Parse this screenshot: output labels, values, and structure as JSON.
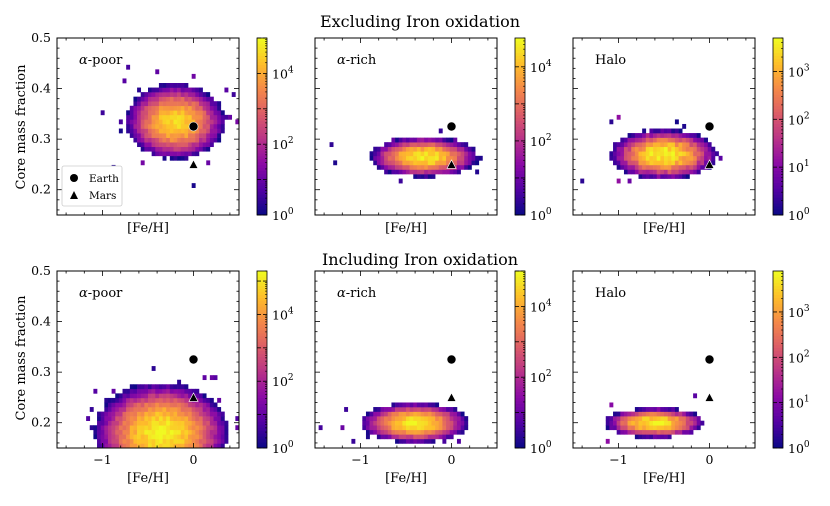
{
  "colors": {
    "cmap": [
      "#0d0887",
      "#5402a3",
      "#8b0aa5",
      "#b83289",
      "#db5c68",
      "#f48849",
      "#febd2a",
      "#f0f921"
    ],
    "marker": "#000000",
    "background": "#ffffff"
  },
  "chart_data": {
    "type": "heatmap",
    "shared": {
      "xlabel": "[Fe/H]",
      "ylabel": "Core mass fraction",
      "xlim": [
        -1.5,
        0.5
      ],
      "ylim": [
        0.15,
        0.5
      ],
      "xticks": [
        -1,
        0
      ],
      "xtick_labels": [
        "−1",
        "0"
      ],
      "yticks": [
        0.2,
        0.3,
        0.4,
        0.5
      ],
      "ytick_labels": [
        "0.2",
        "0.3",
        "0.4",
        "0.5"
      ],
      "colorscale": "plasma (log)",
      "cb_tick_base": "10",
      "legend_entries": [
        "Earth",
        "Mars"
      ],
      "legend_location": "lower-left",
      "points": [
        {
          "name": "Earth",
          "marker": "circle",
          "feh": 0.0,
          "cmf_excl": 0.325,
          "cmf_incl": 0.325
        },
        {
          "name": "Mars",
          "marker": "triangle",
          "feh": 0.0,
          "cmf_excl": 0.25,
          "cmf_incl": 0.25
        }
      ]
    },
    "rows": [
      {
        "title": "Excluding Iron oxidation"
      },
      {
        "title": "Including Iron oxidation"
      }
    ],
    "panels": [
      {
        "label_greek": "α",
        "label_rest": "-poor",
        "row": 0,
        "col": 0,
        "cb_max": 100000,
        "cb_ticks": [
          0,
          2,
          4
        ],
        "blob": {
          "center_feh": -0.2,
          "center_cmf": 0.335,
          "width_feh": 0.55,
          "height_cmf": 0.075,
          "max_log": 4.6
        },
        "earth_cmf": 0.325,
        "mars_cmf": 0.25
      },
      {
        "label_greek": "α",
        "label_rest": "-rich",
        "row": 0,
        "col": 1,
        "cb_max": 60000,
        "cb_ticks": [
          0,
          2,
          4
        ],
        "blob": {
          "center_feh": -0.3,
          "center_cmf": 0.265,
          "width_feh": 0.6,
          "height_cmf": 0.04,
          "max_log": 4.6
        },
        "earth_cmf": 0.325,
        "mars_cmf": 0.25
      },
      {
        "label_greek": "",
        "label_rest": "Halo",
        "row": 0,
        "col": 2,
        "cb_max": 5000,
        "cb_ticks": [
          0,
          1,
          2,
          3
        ],
        "blob": {
          "center_feh": -0.5,
          "center_cmf": 0.27,
          "width_feh": 0.6,
          "height_cmf": 0.05,
          "max_log": 3.6
        },
        "earth_cmf": 0.325,
        "mars_cmf": 0.25
      },
      {
        "label_greek": "α",
        "label_rest": "-poor",
        "row": 1,
        "col": 0,
        "cb_max": 200000,
        "cb_ticks": [
          0,
          2,
          4
        ],
        "blob": {
          "center_feh": -0.35,
          "center_cmf": 0.18,
          "width_feh": 0.75,
          "height_cmf": 0.1,
          "max_log": 5.2
        },
        "earth_cmf": 0.325,
        "mars_cmf": 0.25
      },
      {
        "label_greek": "α",
        "label_rest": "-rich",
        "row": 1,
        "col": 1,
        "cb_max": 100000,
        "cb_ticks": [
          0,
          2,
          4
        ],
        "blob": {
          "center_feh": -0.4,
          "center_cmf": 0.2,
          "width_feh": 0.6,
          "height_cmf": 0.04,
          "max_log": 4.8
        },
        "earth_cmf": 0.325,
        "mars_cmf": 0.25
      },
      {
        "label_greek": "",
        "label_rest": "Halo",
        "row": 1,
        "col": 2,
        "cb_max": 8000,
        "cb_ticks": [
          0,
          1,
          2,
          3
        ],
        "blob": {
          "center_feh": -0.6,
          "center_cmf": 0.2,
          "width_feh": 0.55,
          "height_cmf": 0.03,
          "max_log": 3.8
        },
        "earth_cmf": 0.325,
        "mars_cmf": 0.25
      }
    ]
  }
}
